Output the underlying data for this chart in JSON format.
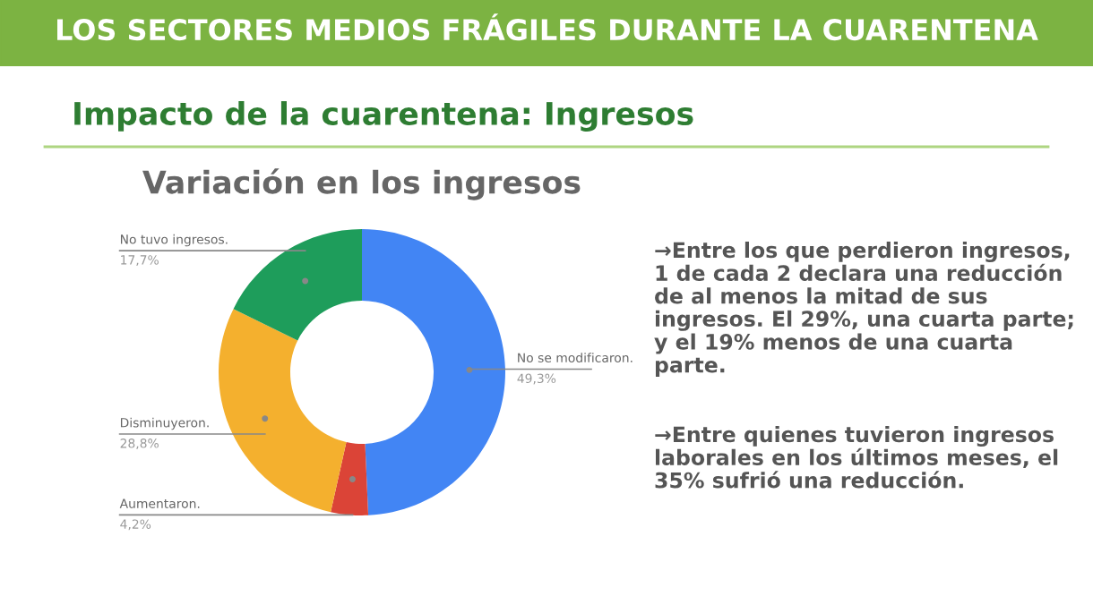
{
  "chart_data": {
    "type": "donut",
    "title": "LOS SECTORES MEDIOS FRÁGILES DURANTE LA CUARENTENA",
    "subtitle": "Impacto de la cuarentena: Ingresos",
    "annotations": [
      "Variación en los ingresos",
      "→Entre los que perdieron ingresos, 1 de cada 2 declara una reducción de al menos la mitad de sus ingresos. El 29%, una cuarta parte; y el 19% menos de una cuarta parte.",
      "→Entre quienes tuvieron ingresos laborales en los últimos meses, el 35% sufrió una reducción."
    ],
    "categories": [
      "No se modificaron.",
      "Aumentaron.",
      "Disminuyeron.",
      "No tuvo ingresos."
    ],
    "values": [
      49.3,
      4.2,
      28.8,
      17.7
    ],
    "value_labels": [
      "49,3%",
      "4,2%",
      "28,8%",
      "17,7%"
    ],
    "colors": [
      "#4285f4",
      "#db4437",
      "#f4b02e",
      "#1e9d5b"
    ],
    "legend": false
  }
}
